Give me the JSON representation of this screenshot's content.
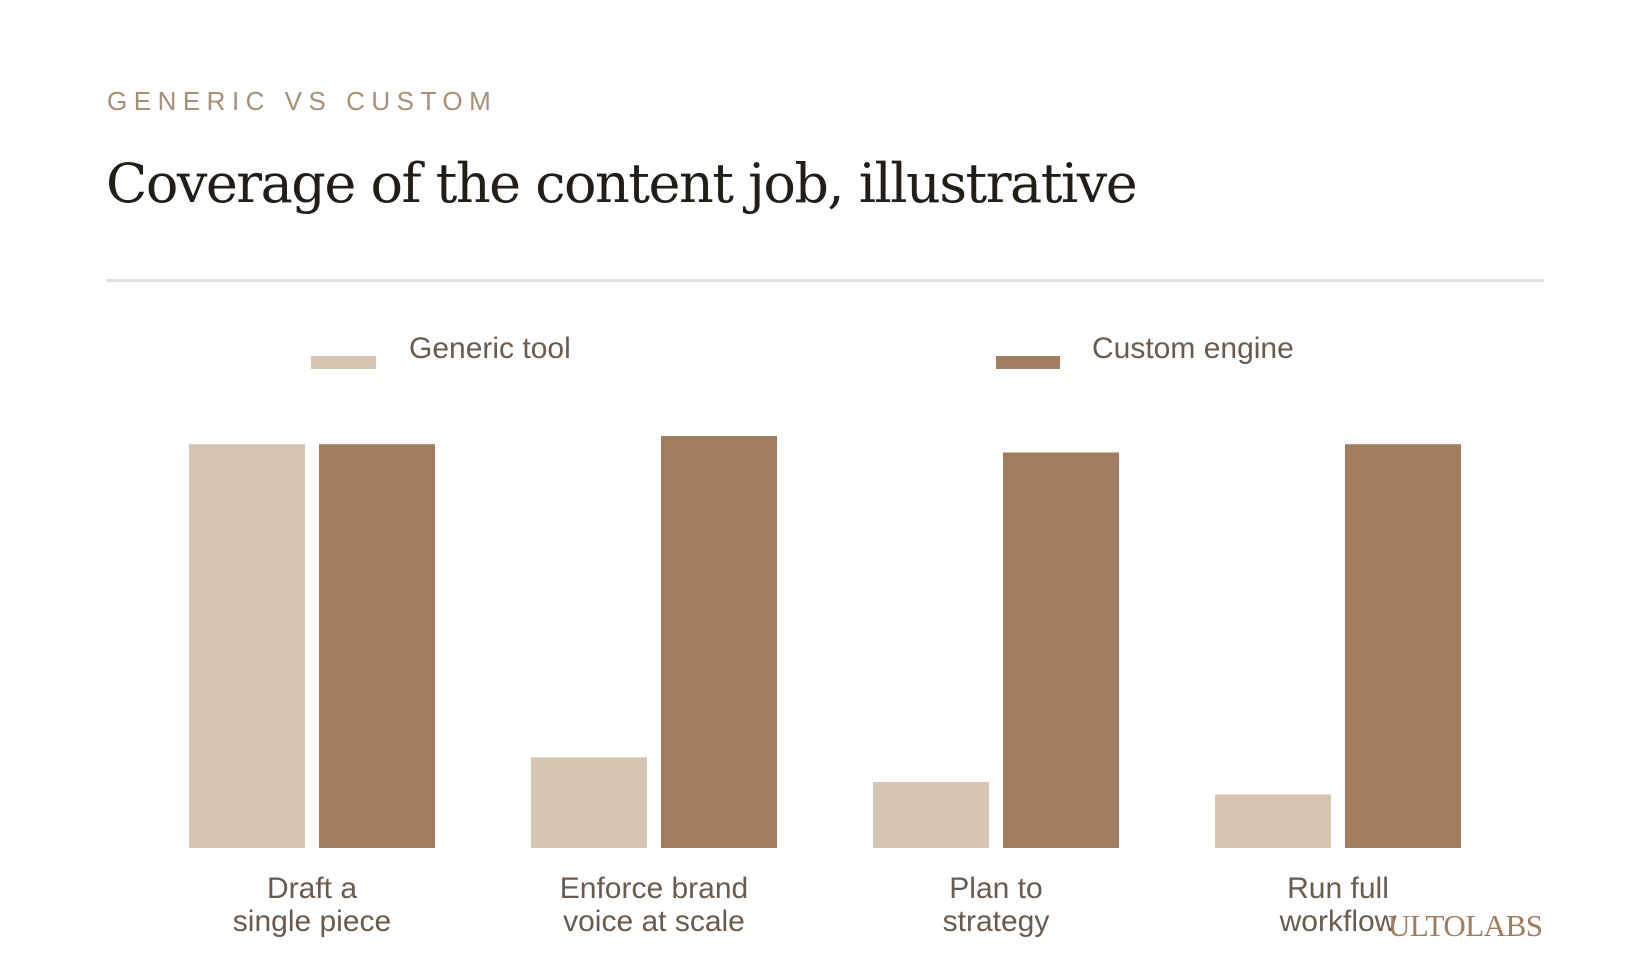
{
  "header": {
    "eyebrow": "GENERIC VS CUSTOM",
    "title": "Coverage of the content job, illustrative"
  },
  "brand": {
    "name": "ULTOLABS",
    "color": "#a07d5c"
  },
  "chart_data": {
    "type": "bar",
    "title": "Coverage of the content job, illustrative",
    "xlabel": "",
    "ylabel": "",
    "ylim": [
      0,
      100
    ],
    "grid": false,
    "legend_position": "top",
    "categories": [
      [
        "Draft a",
        "single piece"
      ],
      [
        "Enforce brand",
        "voice at scale"
      ],
      [
        "Plan to",
        "strategy"
      ],
      [
        "Run full",
        "workflow"
      ]
    ],
    "series": [
      {
        "name": "Generic tool",
        "color": "#d4c4b1",
        "values": [
          98,
          22,
          16,
          13
        ]
      },
      {
        "name": "Custom engine",
        "color": "#a07d5c",
        "values": [
          98,
          100,
          96,
          98
        ]
      }
    ]
  }
}
